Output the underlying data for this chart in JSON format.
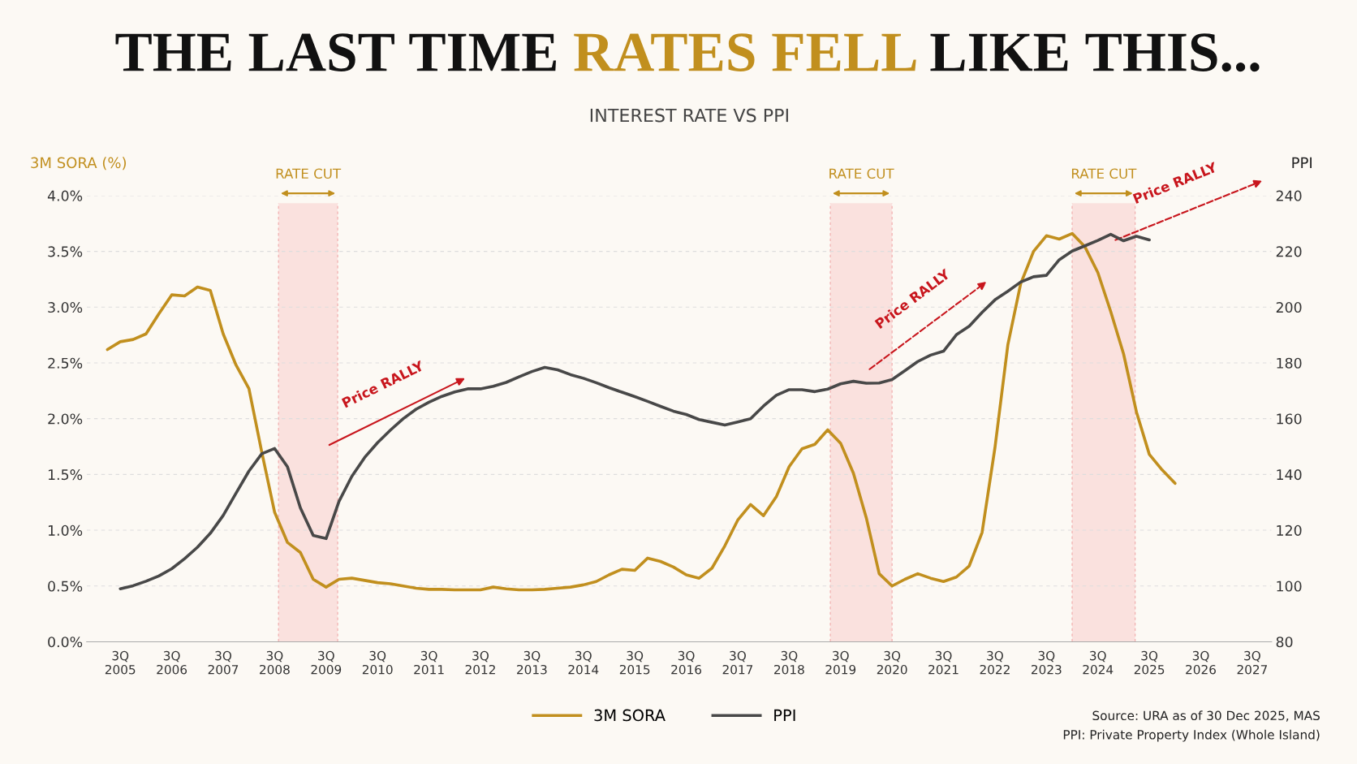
{
  "chart_data": {
    "type": "line",
    "title": "THE LAST TIME RATES FELL LIKE THIS...",
    "subtitle": "INTEREST RATE VS PPI",
    "ylabel": "3M SORA (%)",
    "y2label": "PPI",
    "categories": [
      null,
      "3Q\n2005",
      null,
      null,
      null,
      "3Q\n2006",
      null,
      null,
      null,
      "3Q\n2007",
      null,
      null,
      null,
      "3Q\n2008",
      null,
      null,
      null,
      "3Q\n2009",
      null,
      null,
      null,
      "3Q\n2010",
      null,
      null,
      null,
      "3Q\n2011",
      null,
      null,
      null,
      "3Q\n2012",
      null,
      null,
      null,
      "3Q\n2013",
      null,
      null,
      null,
      "3Q\n2014",
      null,
      null,
      null,
      "3Q\n2015",
      null,
      null,
      null,
      "3Q\n2016",
      null,
      null,
      null,
      "3Q\n2017",
      null,
      null,
      null,
      "3Q\n2018",
      null,
      null,
      null,
      "3Q\n2019",
      null,
      null,
      null,
      "3Q\n2020",
      null,
      null,
      null,
      "3Q\n2021",
      null,
      null,
      null,
      "3Q\n2022",
      null,
      null,
      null,
      "3Q\n2023",
      null,
      null,
      null,
      "3Q\n2024",
      null,
      null,
      null,
      "3Q\n2025",
      null,
      null,
      null,
      "3Q\n2026",
      null,
      null,
      null,
      "3Q\n2027"
    ],
    "ylim": [
      0,
      4.0
    ],
    "yticks": [
      {
        "value": 0,
        "label": "0.0%"
      },
      {
        "value": 0.5,
        "label": "0.5%"
      },
      {
        "value": 1.0,
        "label": "1.0%"
      },
      {
        "value": 1.5,
        "label": "1.5%"
      },
      {
        "value": 2.0,
        "label": "2.0%"
      },
      {
        "value": 2.5,
        "label": "2.5%"
      },
      {
        "value": 3.0,
        "label": "3.0%"
      },
      {
        "value": 3.5,
        "label": "3.5%"
      },
      {
        "value": 4.0,
        "label": "4.0%"
      }
    ],
    "y2lim": [
      80,
      240
    ],
    "y2ticks": [
      80,
      100,
      120,
      140,
      160,
      180,
      200,
      220,
      240
    ],
    "grid": "y",
    "legend": "bottom",
    "marker": "none",
    "line_style": "solid",
    "series": [
      {
        "name": "3M SORA",
        "color": "#c18f1e",
        "values": [
          2.62,
          2.69,
          2.71,
          2.76,
          2.94,
          3.11,
          3.1,
          3.18,
          3.15,
          2.76,
          2.48,
          2.27,
          1.7,
          1.16,
          0.89,
          0.8,
          0.56,
          0.49,
          0.56,
          0.57,
          0.55,
          0.53,
          0.52,
          0.5,
          0.48,
          0.47,
          0.47,
          0.465,
          0.465,
          0.465,
          0.49,
          0.475,
          0.465,
          0.465,
          0.47,
          0.48,
          0.49,
          0.51,
          0.54,
          0.6,
          0.65,
          0.64,
          0.75,
          0.72,
          0.67,
          0.6,
          0.57,
          0.66,
          0.86,
          1.09,
          1.23,
          1.13,
          1.3,
          1.57,
          1.73,
          1.77,
          1.9,
          1.78,
          1.51,
          1.11,
          0.61,
          0.5,
          0.56,
          0.61,
          0.57,
          0.54,
          0.58,
          0.68,
          0.98,
          1.74,
          2.66,
          3.21,
          3.5,
          3.64,
          3.61,
          3.66,
          3.54,
          3.31,
          2.96,
          2.58,
          2.06,
          1.68,
          1.54,
          1.42,
          null,
          null,
          null,
          null,
          null,
          null
        ]
      },
      {
        "name": "PPI",
        "color": "#484848",
        "axis": "y2",
        "values": [
          null,
          99,
          100.1,
          101.7,
          103.6,
          106.2,
          109.8,
          113.9,
          118.9,
          125.3,
          133.3,
          141.2,
          147.4,
          149.3,
          142.7,
          128,
          118.1,
          117,
          130.3,
          139.3,
          146.1,
          151.4,
          155.9,
          160,
          163.4,
          165.9,
          168,
          169.6,
          170.7,
          170.7,
          171.6,
          173,
          175,
          176.9,
          178.4,
          177.5,
          175.8,
          174.5,
          172.9,
          171.1,
          169.5,
          167.9,
          166.2,
          164.4,
          162.7,
          161.5,
          159.7,
          158.7,
          157.7,
          158.8,
          160,
          164.5,
          168.4,
          170.4,
          170.4,
          169.7,
          170.6,
          172.5,
          173.4,
          172.7,
          172.8,
          174,
          177.2,
          180.5,
          182.8,
          184.2,
          190.1,
          193.2,
          198.1,
          202.6,
          205.7,
          209,
          210.9,
          211.4,
          217,
          220.1,
          222,
          223.9,
          226.1,
          223.8,
          225.4,
          224.1,
          null,
          null,
          null,
          null,
          null,
          null,
          null,
          null
        ]
      }
    ],
    "annotations": [
      "RATE CUT",
      "RATE CUT",
      "RATE CUT",
      "Price RALLY",
      "Price RALLY",
      "Price RALLY",
      "Source: URA as of 30 Dec 2025, MAS",
      "PPI: Private Property Index (Whole Island)"
    ]
  }
}
